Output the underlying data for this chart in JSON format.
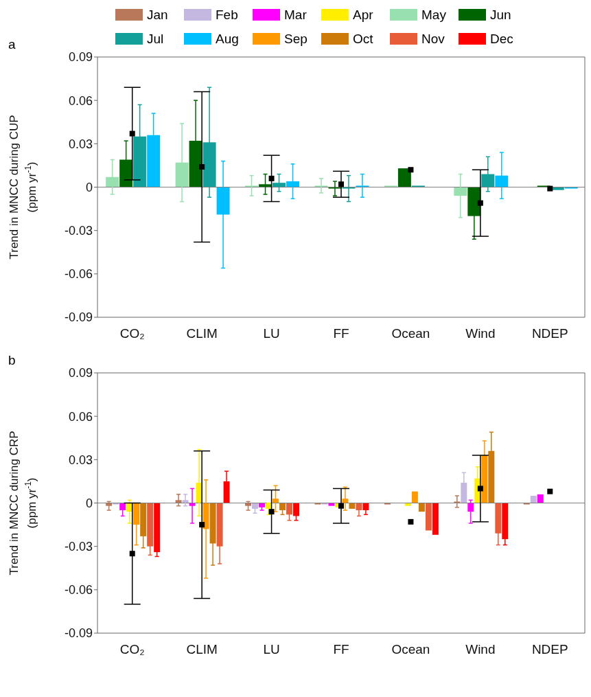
{
  "chart_data": [
    {
      "type": "bar",
      "title": "a",
      "categories": [
        "CO₂",
        "CLIM",
        "LU",
        "FF",
        "Ocean",
        "Wind",
        "NDEP"
      ],
      "ylabel": "Trend in MNCC during CUP\n(ppm yr$^{-1}$)",
      "ylim": [
        -0.09,
        0.09
      ],
      "yticks": [
        -0.09,
        -0.06,
        -0.03,
        0,
        0.03,
        0.06,
        0.09
      ],
      "legend": "top",
      "marker": "square",
      "ref_lines": [
        {
          "axis": "y",
          "value": 0,
          "color": "#808080"
        }
      ],
      "series": [
        {
          "name": "Jan",
          "color": "#b9785a",
          "values": [
            null,
            null,
            null,
            null,
            null,
            null,
            null
          ]
        },
        {
          "name": "Feb",
          "color": "#c5b8e0",
          "values": [
            null,
            null,
            null,
            null,
            null,
            null,
            null
          ]
        },
        {
          "name": "Mar",
          "color": "#ff00ff",
          "values": [
            null,
            null,
            null,
            null,
            null,
            null,
            null
          ]
        },
        {
          "name": "Apr",
          "color": "#ffee00",
          "values": [
            null,
            null,
            null,
            null,
            null,
            null,
            null
          ]
        },
        {
          "name": "May",
          "color": "#99e0b0",
          "values": [
            0.007,
            0.017,
            0.001,
            0.001,
            0.001,
            -0.006,
            0.0
          ],
          "errors": [
            0.012,
            0.027,
            0.007,
            0.005,
            null,
            0.015,
            null
          ]
        },
        {
          "name": "Jun",
          "color": "#006400",
          "values": [
            0.019,
            0.032,
            0.002,
            -0.001,
            0.013,
            -0.02,
            0.001
          ],
          "errors": [
            0.013,
            0.028,
            0.007,
            0.005,
            null,
            0.016,
            null
          ]
        },
        {
          "name": "Jul",
          "color": "#14a09a",
          "values": [
            0.035,
            0.031,
            0.003,
            -0.001,
            0.001,
            0.009,
            -0.002
          ],
          "errors": [
            0.022,
            0.038,
            0.006,
            0.009,
            null,
            0.012,
            null
          ]
        },
        {
          "name": "Aug",
          "color": "#00bfff",
          "values": [
            0.036,
            -0.019,
            0.004,
            0.001,
            0.0,
            0.008,
            -0.001
          ],
          "errors": [
            0.015,
            0.037,
            0.012,
            0.008,
            null,
            0.016,
            null
          ]
        },
        {
          "name": "Sep",
          "color": "#ff9900",
          "values": [
            null,
            null,
            null,
            null,
            null,
            null,
            null
          ]
        },
        {
          "name": "Oct",
          "color": "#cc7a0a",
          "values": [
            null,
            null,
            null,
            null,
            null,
            null,
            null
          ]
        },
        {
          "name": "Nov",
          "color": "#e85c38",
          "values": [
            null,
            null,
            null,
            null,
            null,
            null,
            null
          ]
        },
        {
          "name": "Dec",
          "color": "#ff0000",
          "values": [
            null,
            null,
            null,
            null,
            null,
            null,
            null
          ]
        },
        {
          "type": "scatter",
          "color": "#000000",
          "values": [
            0.037,
            0.014,
            0.006,
            0.002,
            0.012,
            -0.011,
            -0.001
          ],
          "errors": [
            0.032,
            0.052,
            0.016,
            0.009,
            null,
            0.023,
            null
          ]
        }
      ]
    },
    {
      "type": "bar",
      "title": "b",
      "categories": [
        "CO₂",
        "CLIM",
        "LU",
        "FF",
        "Ocean",
        "Wind",
        "NDEP"
      ],
      "ylabel": "Trend in MNCC during CRP\n(ppm yr$^{-1}$)",
      "marker": "square",
      "ylim": [
        -0.09,
        0.09
      ],
      "yticks": [
        -0.09,
        -0.06,
        -0.03,
        0,
        0.03,
        0.06,
        0.09
      ],
      "ref_lines": [
        {
          "axis": "y",
          "value": 0,
          "color": "#808080"
        }
      ],
      "series": [
        {
          "color": "#b9785a",
          "values": [
            -0.002,
            0.002,
            -0.002,
            -0.001,
            -0.001,
            0.001,
            -0.001
          ],
          "errors": [
            0.003,
            0.004,
            0.003,
            null,
            null,
            0.004,
            null
          ]
        },
        {
          "color": "#c5b8e0",
          "values": [
            -0.001,
            0.002,
            -0.004,
            -0.001,
            0.0,
            0.014,
            0.005
          ],
          "errors": [
            null,
            0.004,
            0.003,
            null,
            null,
            0.007,
            null
          ]
        },
        {
          "color": "#ff00ff",
          "values": [
            -0.005,
            -0.002,
            -0.003,
            -0.002,
            0.0,
            -0.006,
            0.006
          ],
          "errors": [
            0.004,
            0.012,
            0.002,
            null,
            null,
            0.008,
            null
          ]
        },
        {
          "color": "#ffee00",
          "values": [
            -0.006,
            0.014,
            -0.004,
            -0.003,
            -0.002,
            0.017,
            null
          ],
          "errors": [
            0.008,
            0.023,
            0.004,
            null,
            null,
            0.008,
            null
          ]
        },
        {
          "color": "#ff9900",
          "values": [
            -0.015,
            -0.018,
            0.003,
            0.003,
            0.008,
            0.033,
            null
          ],
          "errors": [
            0.014,
            0.034,
            0.009,
            0.008,
            null,
            0.01,
            null
          ]
        },
        {
          "color": "#cc7a0a",
          "values": [
            -0.023,
            -0.028,
            -0.005,
            -0.004,
            -0.006,
            0.036,
            null
          ],
          "errors": [
            0.008,
            0.015,
            0.003,
            null,
            null,
            0.013,
            null
          ]
        },
        {
          "color": "#e85c38",
          "values": [
            -0.03,
            -0.03,
            -0.008,
            -0.005,
            -0.019,
            -0.021,
            null
          ],
          "errors": [
            0.006,
            0.012,
            0.004,
            0.004,
            null,
            0.008,
            null
          ]
        },
        {
          "color": "#ff0000",
          "values": [
            -0.034,
            0.015,
            -0.009,
            -0.005,
            -0.022,
            -0.025,
            null
          ],
          "errors": [
            0.003,
            0.007,
            0.003,
            0.003,
            null,
            0.004,
            null
          ]
        },
        {
          "type": "scatter",
          "color": "#000000",
          "values": [
            -0.035,
            -0.015,
            -0.006,
            -0.002,
            -0.013,
            0.01,
            0.008
          ],
          "errors": [
            0.035,
            0.051,
            0.015,
            0.012,
            null,
            0.023,
            null
          ]
        }
      ]
    }
  ]
}
